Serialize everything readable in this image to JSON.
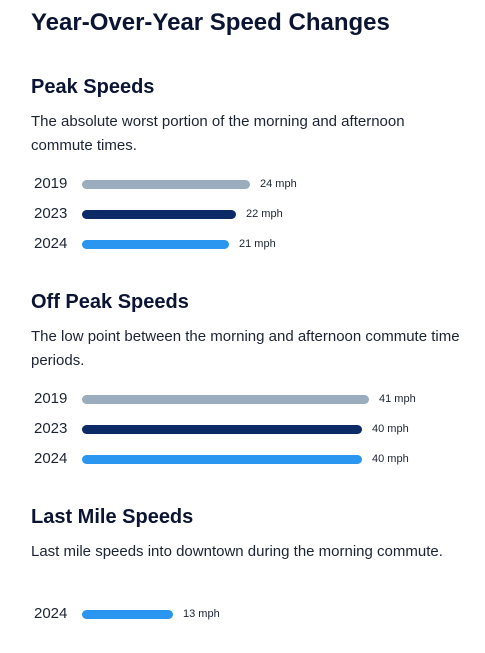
{
  "page": {
    "title": "Year-Over-Year Speed Changes"
  },
  "colors": {
    "y2019": "#9aacbe",
    "y2023": "#0b2a66",
    "y2024": "#2b96f0"
  },
  "chart_data": [
    {
      "type": "bar",
      "title": "Peak Speeds",
      "subtitle": "The absolute worst portion of the morning and afternoon commute times.",
      "categories": [
        "2019",
        "2023",
        "2024"
      ],
      "values": [
        24,
        22,
        21
      ],
      "value_labels": [
        "24 mph",
        "22 mph",
        "21 mph"
      ],
      "unit": "mph"
    },
    {
      "type": "bar",
      "title": "Off Peak Speeds",
      "subtitle": "The low point between the morning and afternoon commute time periods.",
      "categories": [
        "2019",
        "2023",
        "2024"
      ],
      "values": [
        41,
        40,
        40
      ],
      "value_labels": [
        "41 mph",
        "40 mph",
        "40 mph"
      ],
      "unit": "mph"
    },
    {
      "type": "bar",
      "title": "Last Mile Speeds",
      "subtitle": "Last mile speeds into downtown during the morning commute.",
      "categories": [
        "2024"
      ],
      "values": [
        13
      ],
      "value_labels": [
        "13 mph"
      ],
      "unit": "mph"
    }
  ]
}
